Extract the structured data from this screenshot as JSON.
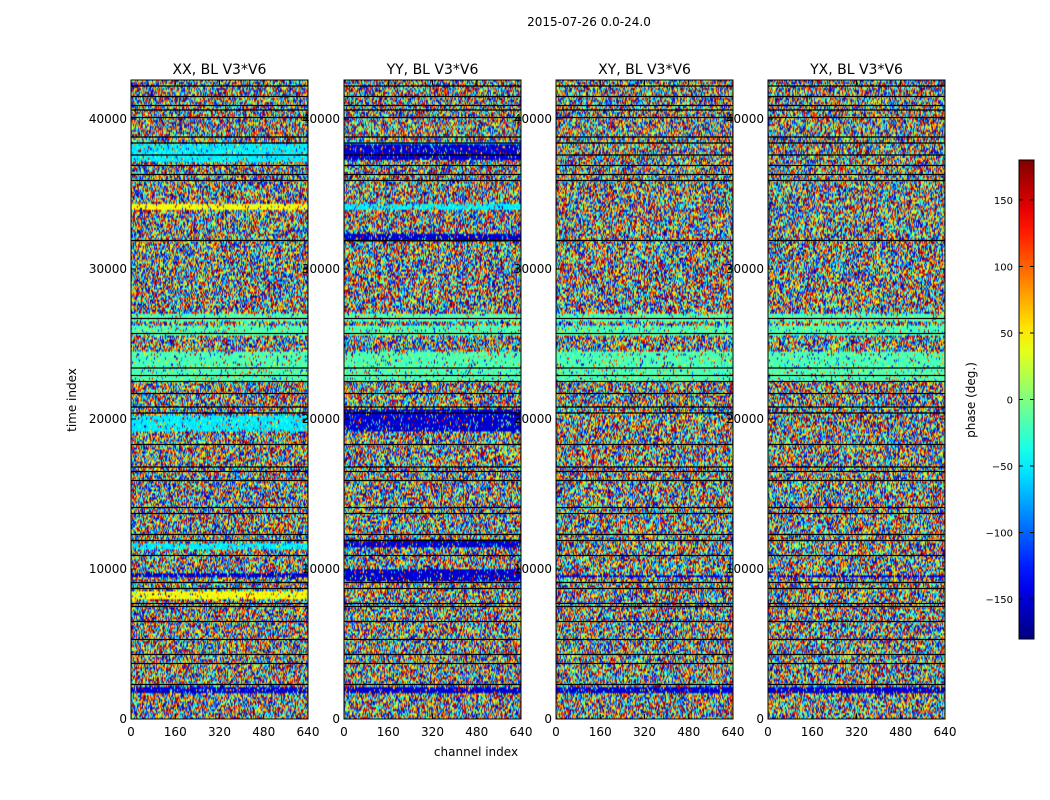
{
  "chart_data": {
    "type": "heatmap",
    "suptitle": "2015-07-26 0.0-24.0",
    "panels": [
      {
        "title": "XX, BL V3*V6",
        "seed": 11,
        "blue_bands": [
          [
            1700,
            2100
          ],
          [
            9400,
            9700
          ]
        ],
        "cyan_bands": [
          [
            19200,
            20300
          ],
          [
            37200,
            38300
          ],
          [
            11300,
            11700
          ]
        ],
        "yellow_bands": [
          [
            34000,
            34400
          ],
          [
            8000,
            8500
          ]
        ]
      },
      {
        "title": "YY, BL V3*V6",
        "seed": 23,
        "blue_bands": [
          [
            1700,
            2100
          ],
          [
            9200,
            10000
          ],
          [
            11500,
            12000
          ],
          [
            19200,
            20600
          ],
          [
            31800,
            32400
          ],
          [
            37300,
            38300
          ]
        ],
        "cyan_bands": [
          [
            34000,
            34400
          ],
          [
            38000,
            38500
          ]
        ],
        "yellow_bands": []
      },
      {
        "title": "XY, BL V3*V6",
        "seed": 37,
        "blue_bands": [
          [
            1700,
            2100
          ],
          [
            9400,
            9600
          ]
        ],
        "cyan_bands": [],
        "yellow_bands": []
      },
      {
        "title": "YX, BL V3*V6",
        "seed": 53,
        "blue_bands": [
          [
            1700,
            2100
          ],
          [
            9400,
            9600
          ]
        ],
        "cyan_bands": [],
        "yellow_bands": []
      }
    ],
    "green_bands": [
      [
        22500,
        24500
      ],
      [
        25500,
        26200
      ],
      [
        26500,
        27000
      ]
    ],
    "flag_rows": [
      2300,
      3700,
      4300,
      5300,
      6500,
      7500,
      7700,
      8700,
      9100,
      10900,
      11900,
      12300,
      13700,
      14100,
      15900,
      16500,
      16800,
      18300,
      20400,
      20800,
      21700,
      22500,
      22900,
      23400,
      25700,
      26700,
      31900,
      35900,
      36300,
      36900,
      37600,
      38400,
      38800,
      40100,
      40600,
      40900,
      41500,
      42200
    ],
    "xlabel": "channel index",
    "ylabel": "time index",
    "xlim": [
      0,
      640
    ],
    "ylim": [
      0,
      42600
    ],
    "xticks": [
      0,
      160,
      320,
      480,
      640
    ],
    "yticks": [
      0,
      10000,
      20000,
      30000,
      40000
    ],
    "colorbar": {
      "label": "phase (deg.)",
      "range": [
        -180,
        180
      ],
      "ticks": [
        -150,
        -100,
        -50,
        0,
        50,
        100,
        150
      ],
      "tick_labels": [
        "−150",
        "−100",
        "−50",
        "0",
        "50",
        "100",
        "150"
      ],
      "colormap": "jet"
    }
  }
}
